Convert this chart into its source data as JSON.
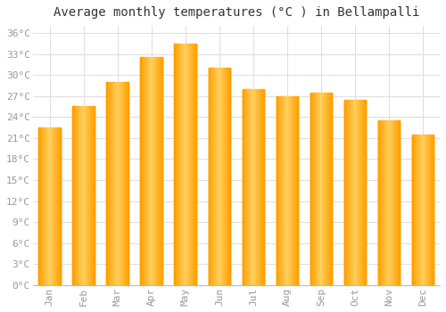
{
  "title": "Average monthly temperatures (°C ) in Bellampalli",
  "months": [
    "Jan",
    "Feb",
    "Mar",
    "Apr",
    "May",
    "Jun",
    "Jul",
    "Aug",
    "Sep",
    "Oct",
    "Nov",
    "Dec"
  ],
  "values": [
    22.5,
    25.5,
    29.0,
    32.5,
    34.5,
    31.0,
    28.0,
    27.0,
    27.5,
    26.5,
    23.5,
    21.5
  ],
  "bar_color_center": "#FFD060",
  "bar_color_edge": "#FFA000",
  "background_color": "#FFFFFF",
  "grid_color": "#E0E0E0",
  "ylim": [
    0,
    37
  ],
  "yticks": [
    0,
    3,
    6,
    9,
    12,
    15,
    18,
    21,
    24,
    27,
    30,
    33,
    36
  ],
  "ytick_labels": [
    "0°C",
    "3°C",
    "6°C",
    "9°C",
    "12°C",
    "15°C",
    "18°C",
    "21°C",
    "24°C",
    "27°C",
    "30°C",
    "33°C",
    "36°C"
  ],
  "title_fontsize": 10,
  "tick_fontsize": 8,
  "tick_color": "#999999",
  "xlabel_rotation": 90,
  "bar_width": 0.65
}
